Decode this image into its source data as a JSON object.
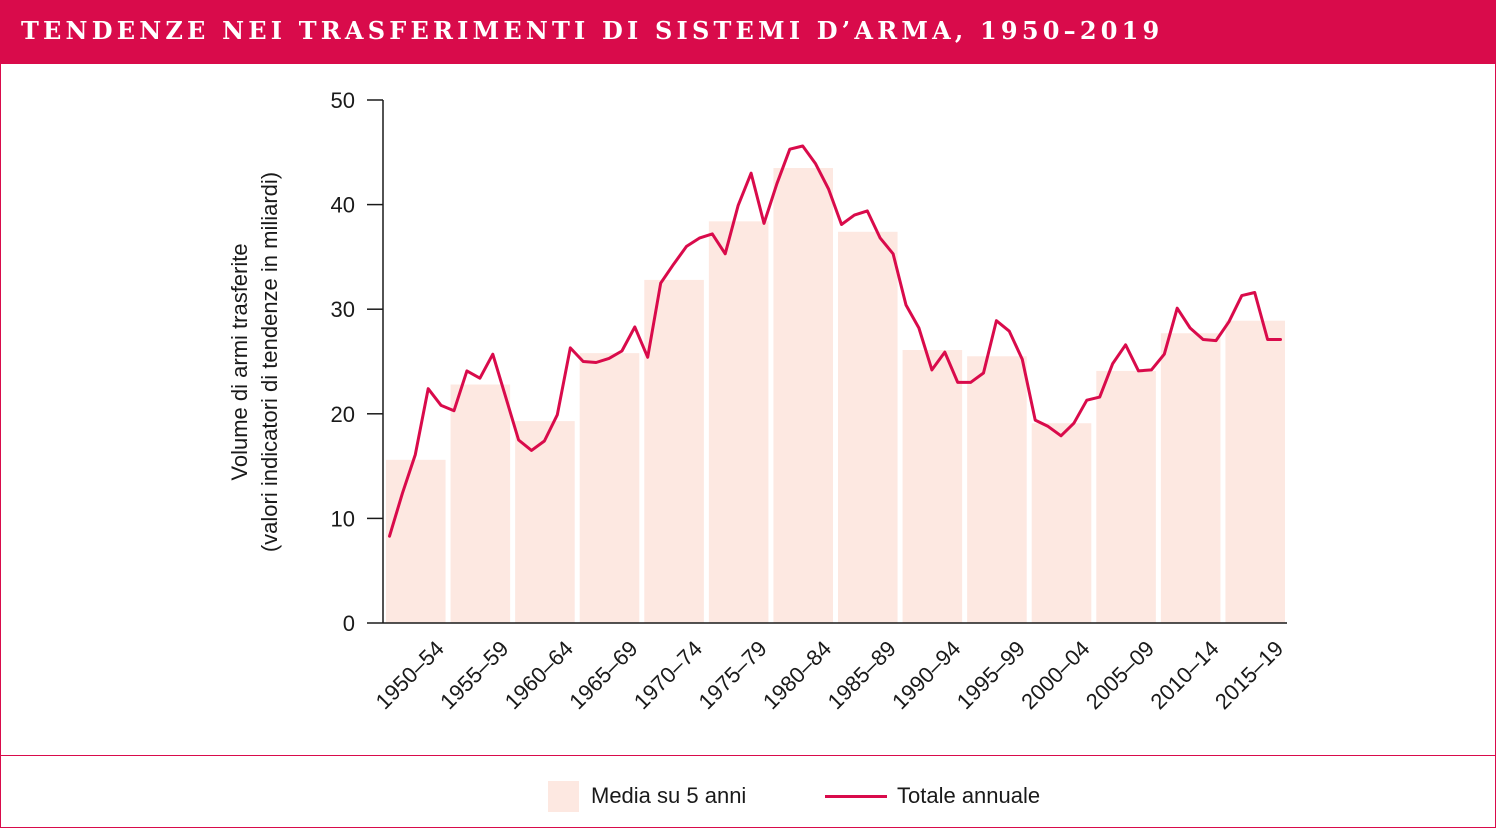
{
  "header": {
    "title": "TENDENZE NEI TRASFERIMENTI DI SISTEMI D’ARMA, 1950–2019"
  },
  "colors": {
    "accent": "#d90b4b",
    "bar_fill": "#fde8e1",
    "text": "#1a1a1a"
  },
  "legend": {
    "bars_label": "Media su 5 anni",
    "line_label": "Totale annuale"
  },
  "chart_data": {
    "type": "bar",
    "title": "TENDENZE NEI TRASFERIMENTI DI SISTEMI D’ARMA, 1950–2019",
    "xlabel": "",
    "ylabel_line1": "Volume di armi trasferite",
    "ylabel_line2": "(valori indicatori di tendenze in miliardi)",
    "ylim": [
      0,
      50
    ],
    "yticks": [
      0,
      10,
      20,
      30,
      40,
      50
    ],
    "ytick_labels": [
      "0",
      "10",
      "20",
      "30",
      "40",
      "50"
    ],
    "grid": false,
    "legend_position": "bottom-center",
    "categories": [
      "1950–54",
      "1955–59",
      "1960–64",
      "1965–69",
      "1970–74",
      "1975–79",
      "1980–84",
      "1985–89",
      "1990–94",
      "1995–99",
      "2000–04",
      "2005–09",
      "2010–14",
      "2015–19"
    ],
    "series": [
      {
        "name": "Media su 5 anni",
        "type": "bar",
        "values": [
          15.6,
          22.8,
          19.3,
          25.8,
          32.8,
          38.4,
          43.5,
          37.4,
          26.1,
          25.5,
          19.1,
          24.1,
          27.7,
          28.9
        ]
      },
      {
        "name": "Totale annuale",
        "type": "line",
        "x": [
          1950,
          1951,
          1952,
          1953,
          1954,
          1955,
          1956,
          1957,
          1958,
          1959,
          1960,
          1961,
          1962,
          1963,
          1964,
          1965,
          1966,
          1967,
          1968,
          1969,
          1970,
          1971,
          1972,
          1973,
          1974,
          1975,
          1976,
          1977,
          1978,
          1979,
          1980,
          1981,
          1982,
          1983,
          1984,
          1985,
          1986,
          1987,
          1988,
          1989,
          1990,
          1991,
          1992,
          1993,
          1994,
          1995,
          1996,
          1997,
          1998,
          1999,
          2000,
          2001,
          2002,
          2003,
          2004,
          2005,
          2006,
          2007,
          2008,
          2009,
          2010,
          2011,
          2012,
          2013,
          2014,
          2015,
          2016,
          2017,
          2018,
          2019
        ],
        "values": [
          8.3,
          12.4,
          16.1,
          22.4,
          20.8,
          20.3,
          24.1,
          23.4,
          25.7,
          21.6,
          17.5,
          16.5,
          17.4,
          19.9,
          26.3,
          25.0,
          24.9,
          25.3,
          26.0,
          28.3,
          25.4,
          32.5,
          34.3,
          36.0,
          36.8,
          37.2,
          35.3,
          39.9,
          43.0,
          38.2,
          42.0,
          45.3,
          45.6,
          43.9,
          41.5,
          38.1,
          39.0,
          39.4,
          36.8,
          35.3,
          30.4,
          28.2,
          24.2,
          25.9,
          23.0,
          23.0,
          23.9,
          28.9,
          27.9,
          25.2,
          19.4,
          18.8,
          17.9,
          19.1,
          21.3,
          21.6,
          24.8,
          26.6,
          24.1,
          24.2,
          25.7,
          30.1,
          28.2,
          27.1,
          27.0,
          28.8,
          31.3,
          31.6,
          27.1,
          27.1
        ]
      }
    ]
  }
}
